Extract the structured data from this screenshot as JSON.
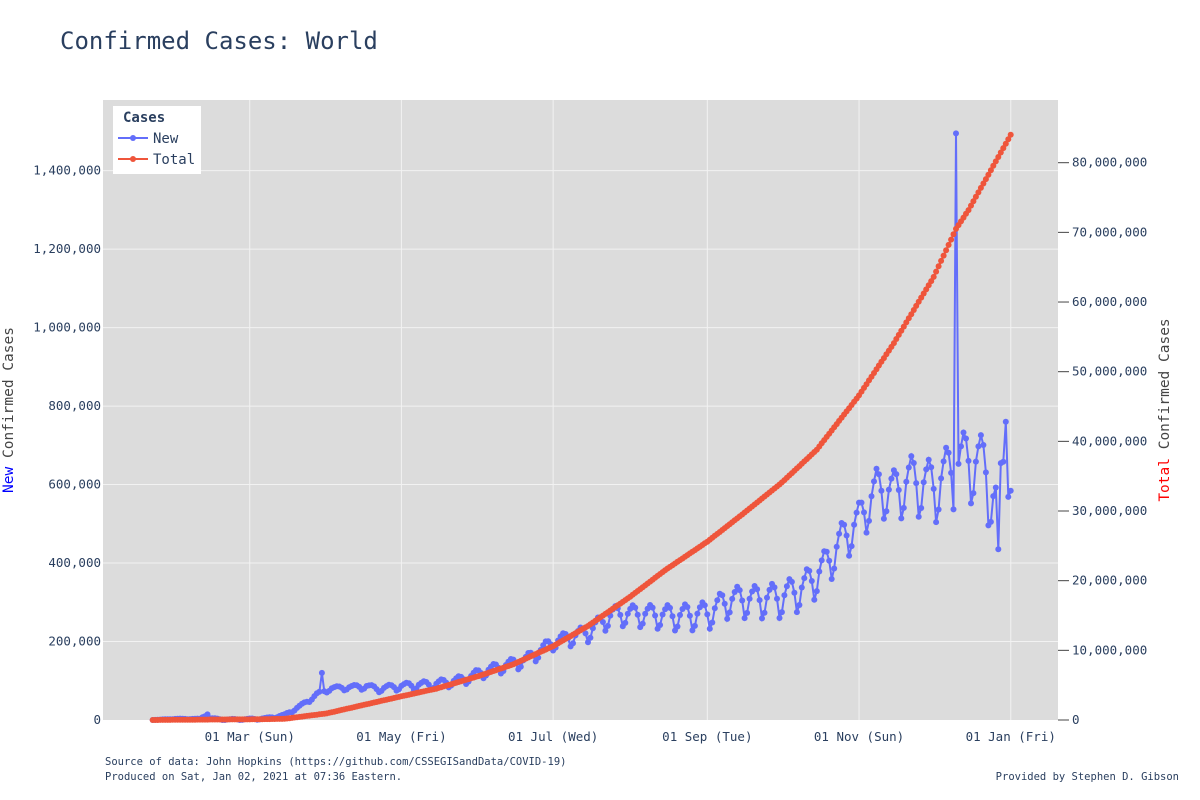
{
  "title": "Confirmed Cases: World",
  "footer": {
    "source": "Source of data: John Hopkins (https://github.com/CSSEGISandData/COVID-19)",
    "produced": "Produced on Sat, Jan 02, 2021 at 07:36 Eastern.",
    "provided": "Provided by Stephen D. Gibson"
  },
  "chart_data": {
    "type": "line",
    "title": "Confirmed Cases: World",
    "x_start_date": "2020-01-22",
    "x_ticks": [
      {
        "date": "2020-03-01",
        "label": "01 Mar (Sun)"
      },
      {
        "date": "2020-05-01",
        "label": "01 May (Fri)"
      },
      {
        "date": "2020-07-01",
        "label": "01 Jul (Wed)"
      },
      {
        "date": "2020-09-01",
        "label": "01 Sep (Tue)"
      },
      {
        "date": "2020-11-01",
        "label": "01 Nov (Sun)"
      },
      {
        "date": "2021-01-01",
        "label": "01 Jan (Fri)"
      }
    ],
    "xlim": [
      "2020-01-02",
      "2021-01-20"
    ],
    "y_left": {
      "label_prefix": "New",
      "label_rest": " Confirmed Cases",
      "prefix_color": "#0000ff",
      "range": [
        0,
        1580000
      ],
      "ticks": [
        0,
        200000,
        400000,
        600000,
        800000,
        1000000,
        1200000,
        1400000
      ],
      "tick_labels": [
        "0",
        "200,000",
        "400,000",
        "600,000",
        "800,000",
        "1,000,000",
        "1,200,000",
        "1,400,000"
      ]
    },
    "y_right": {
      "label_prefix": "Total",
      "label_rest": " Confirmed Cases",
      "prefix_color": "#ff0000",
      "range": [
        0,
        89000000
      ],
      "ticks": [
        0,
        10000000,
        20000000,
        30000000,
        40000000,
        50000000,
        60000000,
        70000000,
        80000000
      ],
      "tick_labels": [
        "0",
        "10,000,000",
        "20,000,000",
        "30,000,000",
        "40,000,000",
        "50,000,000",
        "60,000,000",
        "70,000,000",
        "80,000,000"
      ]
    },
    "legend": {
      "title": "Cases",
      "placement": "top-left"
    },
    "grid": true,
    "colors": {
      "new": "#636efa",
      "total": "#ef553b",
      "plot_bg": "#e5ecf6",
      "grid": "#ffffff"
    },
    "series": [
      {
        "name": "New",
        "axis": "left",
        "color": "#636efa",
        "keypoints": [
          [
            "2020-01-22",
            0
          ],
          [
            "2020-02-01",
            3000
          ],
          [
            "2020-02-10",
            2500
          ],
          [
            "2020-02-13",
            15000
          ],
          [
            "2020-02-14",
            4000
          ],
          [
            "2020-02-20",
            1000
          ],
          [
            "2020-02-29",
            1500
          ],
          [
            "2020-03-08",
            4000
          ],
          [
            "2020-03-15",
            12000
          ],
          [
            "2020-03-20",
            30000
          ],
          [
            "2020-03-25",
            50000
          ],
          [
            "2020-03-28",
            65000
          ],
          [
            "2020-04-03",
            80000
          ],
          [
            "2020-04-10",
            82000
          ],
          [
            "2020-04-17",
            85000
          ],
          [
            "2020-04-21",
            78000
          ],
          [
            "2020-05-01",
            85000
          ],
          [
            "2020-05-15",
            90000
          ],
          [
            "2020-05-25",
            100000
          ],
          [
            "2020-06-05",
            125000
          ],
          [
            "2020-06-20",
            150000
          ],
          [
            "2020-07-01",
            195000
          ],
          [
            "2020-07-15",
            220000
          ],
          [
            "2020-07-25",
            265000
          ],
          [
            "2020-08-05",
            265000
          ],
          [
            "2020-08-20",
            260000
          ],
          [
            "2020-09-01",
            265000
          ],
          [
            "2020-09-10",
            300000
          ],
          [
            "2020-09-20",
            300000
          ],
          [
            "2020-10-01",
            305000
          ],
          [
            "2020-10-10",
            330000
          ],
          [
            "2020-10-18",
            380000
          ],
          [
            "2020-10-25",
            450000
          ],
          [
            "2020-11-01",
            500000
          ],
          [
            "2020-11-08",
            580000
          ],
          [
            "2020-11-15",
            570000
          ],
          [
            "2020-11-22",
            600000
          ],
          [
            "2020-12-01",
            580000
          ],
          [
            "2020-12-08",
            620000
          ],
          [
            "2020-12-15",
            650000
          ],
          [
            "2020-12-22",
            620000
          ],
          [
            "2020-12-27",
            500000
          ],
          [
            "2020-12-30",
            720000
          ],
          [
            "2021-01-01",
            560000
          ]
        ],
        "amplitude": {
          "2020-01-22": 0,
          "2020-03-15": 3000,
          "2020-05-01": 10000,
          "2020-07-01": 20000,
          "2020-09-01": 40000,
          "2020-11-01": 60000,
          "2021-01-01": 120000
        },
        "spikes": [
          [
            "2020-03-30",
            120000
          ],
          [
            "2020-12-10",
            1495000
          ],
          [
            "2020-12-30",
            760000
          ],
          [
            "2020-12-27",
            435000
          ]
        ]
      },
      {
        "name": "Total",
        "axis": "right",
        "color": "#ef553b",
        "keypoints": [
          [
            "2020-01-22",
            0
          ],
          [
            "2020-02-15",
            70000
          ],
          [
            "2020-03-01",
            90000
          ],
          [
            "2020-03-15",
            170000
          ],
          [
            "2020-04-01",
            950000
          ],
          [
            "2020-04-15",
            2100000
          ],
          [
            "2020-05-01",
            3400000
          ],
          [
            "2020-05-15",
            4500000
          ],
          [
            "2020-06-01",
            6300000
          ],
          [
            "2020-06-15",
            8000000
          ],
          [
            "2020-07-01",
            10600000
          ],
          [
            "2020-07-15",
            13500000
          ],
          [
            "2020-08-01",
            17700000
          ],
          [
            "2020-08-15",
            21500000
          ],
          [
            "2020-09-01",
            25600000
          ],
          [
            "2020-09-15",
            29500000
          ],
          [
            "2020-10-01",
            34100000
          ],
          [
            "2020-10-15",
            38800000
          ],
          [
            "2020-11-01",
            46600000
          ],
          [
            "2020-11-15",
            54100000
          ],
          [
            "2020-12-01",
            63600000
          ],
          [
            "2020-12-10",
            70500000
          ],
          [
            "2020-12-15",
            73200000
          ],
          [
            "2021-01-01",
            84000000
          ]
        ]
      }
    ]
  }
}
